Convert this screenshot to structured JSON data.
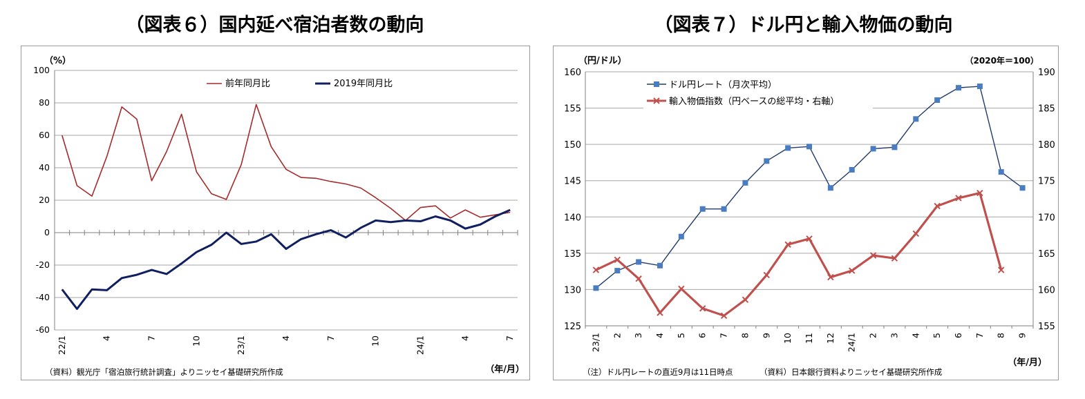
{
  "chart_data": [
    {
      "type": "line",
      "title": "（図表６）国内延べ宿泊者数の動向",
      "ylabel": "（%）",
      "xlabel": "（年/月）",
      "ylim": [
        -60,
        100
      ],
      "yticks": [
        100,
        80,
        60,
        40,
        20,
        0,
        -20,
        -40,
        -60
      ],
      "grid": true,
      "legend_position": "top-right",
      "x": [
        "22/1",
        "22/2",
        "22/3",
        "22/4",
        "22/5",
        "22/6",
        "22/7",
        "22/8",
        "22/9",
        "22/10",
        "22/11",
        "22/12",
        "23/1",
        "23/2",
        "23/3",
        "23/4",
        "23/5",
        "23/6",
        "23/7",
        "23/8",
        "23/9",
        "23/10",
        "23/11",
        "23/12",
        "24/1",
        "24/2",
        "24/3",
        "24/4",
        "24/5",
        "24/6",
        "24/7"
      ],
      "xtick_labels": [
        "22/1",
        "",
        "",
        "4",
        "",
        "",
        "7",
        "",
        "",
        "10",
        "",
        "",
        "23/1",
        "",
        "",
        "4",
        "",
        "",
        "7",
        "",
        "",
        "10",
        "",
        "",
        "24/1",
        "",
        "",
        "4",
        "",
        "",
        "7"
      ],
      "series": [
        {
          "name": "前年同月比",
          "color": "#a52a2a",
          "values": [
            60,
            29,
            22.5,
            47,
            77.5,
            70,
            32,
            50,
            73,
            37.5,
            24,
            20.5,
            42,
            79,
            53,
            39,
            34,
            33.5,
            31.5,
            30,
            27.5,
            21.5,
            15,
            7.5,
            15.5,
            16.5,
            9,
            14,
            9.5,
            11,
            12.5
          ]
        },
        {
          "name": "2019年同月比",
          "color": "#0f1f5f",
          "values": [
            -35,
            -47,
            -35,
            -35.5,
            -28,
            -26,
            -23,
            -25.5,
            -19,
            -12,
            -7.5,
            0,
            -7,
            -5.5,
            -1,
            -10,
            -4,
            -1,
            1.5,
            -3,
            3,
            7.5,
            6.5,
            7.5,
            7,
            10,
            7.5,
            2.5,
            5,
            10,
            14
          ]
        }
      ],
      "source": "（資料）観光庁「宿泊旅行統計調査」よりニッセイ基礎研究所作成"
    },
    {
      "type": "line",
      "title": "（図表７）ドル円と輸入物価の動向",
      "ylabel": "（円/ドル）",
      "ylabel_right": "（2020年＝100）",
      "xlabel": "（年/月）",
      "ylim": [
        125,
        160
      ],
      "ylim_right": [
        155,
        190
      ],
      "yticks": [
        160,
        155,
        150,
        145,
        140,
        135,
        130,
        125
      ],
      "yticks_right": [
        190,
        185,
        180,
        175,
        170,
        165,
        160,
        155
      ],
      "grid": true,
      "legend_position": "top-left",
      "x": [
        "23/1",
        "2",
        "3",
        "4",
        "5",
        "6",
        "7",
        "8",
        "9",
        "10",
        "11",
        "12",
        "24/1",
        "2",
        "3",
        "4",
        "5",
        "6",
        "7",
        "8",
        "9"
      ],
      "xtick_labels": [
        "23/1",
        "2",
        "3",
        "4",
        "5",
        "6",
        "7",
        "8",
        "9",
        "10",
        "11",
        "12",
        "24/1",
        "2",
        "3",
        "4",
        "5",
        "6",
        "7",
        "8",
        "9"
      ],
      "series": [
        {
          "name": "ドル円レート（月次平均）",
          "color": "#1f3a6b",
          "marker": "square",
          "marker_color": "#4a7cc0",
          "axis": "left",
          "values": [
            130.2,
            132.6,
            133.8,
            133.3,
            137.3,
            141.1,
            141.1,
            144.7,
            147.7,
            149.5,
            149.7,
            144.0,
            146.5,
            149.4,
            149.6,
            153.5,
            156.1,
            157.8,
            158.0,
            146.2,
            144.0
          ]
        },
        {
          "name": "輸入物価指数（円ベースの総平均・右軸）",
          "color": "#c0504d",
          "marker": "cross",
          "axis": "right",
          "values": [
            162.7,
            164.1,
            161.5,
            156.8,
            160.1,
            157.4,
            156.4,
            158.6,
            162.0,
            166.2,
            167.0,
            161.7,
            162.6,
            164.7,
            164.3,
            167.7,
            171.5,
            172.6,
            173.3,
            162.7,
            null
          ]
        }
      ],
      "note": "（注）ドル円レートの直近9月は11日時点",
      "source": "（資料）日本銀行資料よりニッセイ基礎研究所作成"
    }
  ]
}
